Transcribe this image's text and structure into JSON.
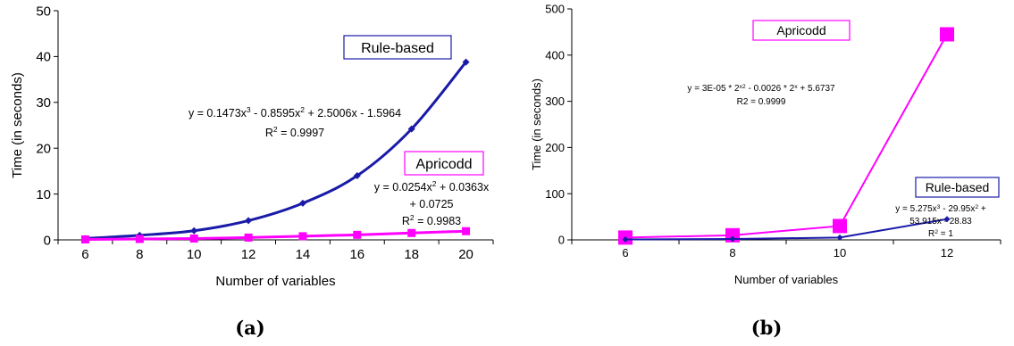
{
  "colors": {
    "rule_based": "#1a1aa8",
    "apricodd": "#ff00ff",
    "axis": "#000000",
    "text": "#000000"
  },
  "chart_data": [
    {
      "type": "line",
      "panel_label": "(a)",
      "xlabel": "Number of variables",
      "ylabel": "Time (in seconds)",
      "xlim": [
        5,
        21
      ],
      "ylim": [
        0,
        50
      ],
      "x_ticks": [
        6,
        8,
        10,
        12,
        14,
        16,
        18,
        20
      ],
      "y_ticks": [
        0,
        10,
        20,
        30,
        40,
        50
      ],
      "grid": false,
      "series": [
        {
          "name": "Rule-based",
          "color": "#1a1aa8",
          "marker": "diamond",
          "x": [
            6,
            8,
            10,
            12,
            14,
            16,
            18,
            20
          ],
          "values": [
            0.3,
            1.0,
            2.0,
            4.2,
            8.0,
            14.0,
            24.2,
            38.8
          ],
          "equation_lines": [
            "y = 0.1473x³ - 0.8595x² + 2.5006x - 1.5964",
            "R² = 0.9997"
          ]
        },
        {
          "name": "Apricodd",
          "color": "#ff00ff",
          "marker": "square",
          "x": [
            6,
            8,
            10,
            12,
            14,
            16,
            18,
            20
          ],
          "values": [
            0.1,
            0.2,
            0.3,
            0.5,
            0.8,
            1.1,
            1.5,
            1.9
          ],
          "equation_lines": [
            "y = 0.0254x² + 0.0363x",
            "+ 0.0725",
            "R² = 0.9983"
          ]
        }
      ]
    },
    {
      "type": "line",
      "panel_label": "(b)",
      "xlabel": "Number of variables",
      "ylabel": "Time  (in seconds)",
      "xlim": [
        5,
        13
      ],
      "ylim": [
        0,
        500
      ],
      "x_ticks": [
        6,
        8,
        10,
        12
      ],
      "y_ticks": [
        0,
        100,
        200,
        300,
        400,
        500
      ],
      "grid": false,
      "series": [
        {
          "name": "Apricodd",
          "color": "#ff00ff",
          "marker": "square",
          "x": [
            6,
            8,
            10,
            12
          ],
          "values": [
            5,
            10,
            30,
            445
          ],
          "equation_lines": [
            "y = 3E-05 * 2^(x²) - 0.0026 * 2^x + 5.6737",
            "R2 = 0.9999"
          ]
        },
        {
          "name": "Rule-based",
          "color": "#1a1aa8",
          "marker": "diamond",
          "x": [
            6,
            8,
            10,
            12
          ],
          "values": [
            1,
            2,
            5,
            45
          ],
          "equation_lines": [
            "y = 5.275x³ - 29.95x² +",
            "53.915x - 28.83",
            "R² = 1"
          ]
        }
      ]
    }
  ]
}
